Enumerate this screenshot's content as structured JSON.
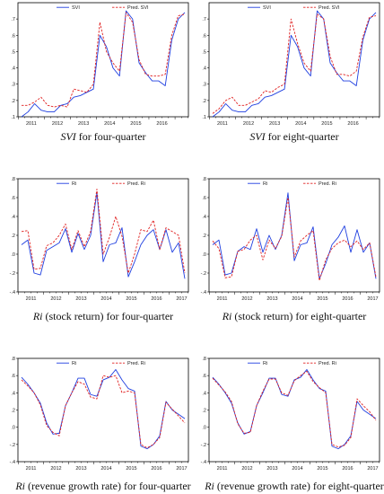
{
  "panels": [
    {
      "caption_italic": "SVI",
      "caption_rest": " for four-quarter",
      "chart_data": {
        "type": "line",
        "x_start_year": 2011,
        "x_tick_labels": [
          "2011",
          "2012",
          "2013",
          "2014",
          "2015",
          "2016",
          "2017"
        ],
        "ylim": [
          0.1,
          0.8
        ],
        "y_ticks": [
          0.1,
          0.2,
          0.3,
          0.4,
          0.5,
          0.6,
          0.7
        ],
        "y_tick_labels": [
          ".1",
          ".2",
          ".3",
          ".4",
          ".5",
          ".6",
          ".7"
        ],
        "legend_position": "top-center",
        "series": [
          {
            "name": "SVI",
            "color": "#1f3fe0",
            "dash": "solid",
            "values": [
              0.1,
              0.13,
              0.18,
              0.14,
              0.13,
              0.13,
              0.17,
              0.18,
              0.22,
              0.23,
              0.25,
              0.27,
              0.6,
              0.53,
              0.4,
              0.35,
              0.75,
              0.7,
              0.43,
              0.37,
              0.32,
              0.32,
              0.29,
              0.57,
              0.7,
              0.74
            ]
          },
          {
            "name": "Pred. SVI",
            "color": "#e02020",
            "dash": "dashed",
            "values": [
              0.17,
              0.17,
              0.19,
              0.22,
              0.17,
              0.16,
              0.17,
              0.16,
              0.27,
              0.26,
              0.25,
              0.3,
              0.68,
              0.5,
              0.43,
              0.38,
              0.74,
              0.68,
              0.45,
              0.36,
              0.35,
              0.35,
              0.36,
              0.6,
              0.72,
              0.73
            ]
          }
        ]
      }
    },
    {
      "caption_italic": "SVI",
      "caption_rest": " for eight-quarter",
      "chart_data": {
        "type": "line",
        "x_start_year": 2011,
        "x_tick_labels": [
          "2011",
          "2012",
          "2013",
          "2014",
          "2015",
          "2016",
          "2017"
        ],
        "ylim": [
          0.1,
          0.8
        ],
        "y_ticks": [
          0.1,
          0.2,
          0.3,
          0.4,
          0.5,
          0.6,
          0.7
        ],
        "y_tick_labels": [
          ".1",
          ".2",
          ".3",
          ".4",
          ".5",
          ".6",
          ".7"
        ],
        "legend_position": "top-center",
        "series": [
          {
            "name": "SVI",
            "color": "#1f3fe0",
            "dash": "solid",
            "values": [
              0.1,
              0.13,
              0.18,
              0.14,
              0.13,
              0.13,
              0.17,
              0.18,
              0.22,
              0.23,
              0.25,
              0.27,
              0.6,
              0.53,
              0.4,
              0.35,
              0.75,
              0.7,
              0.43,
              0.37,
              0.32,
              0.32,
              0.29,
              0.57,
              0.7,
              0.74
            ]
          },
          {
            "name": "Pred. SVI",
            "color": "#e02020",
            "dash": "dashed",
            "values": [
              0.12,
              0.15,
              0.2,
              0.22,
              0.17,
              0.17,
              0.19,
              0.21,
              0.26,
              0.25,
              0.28,
              0.3,
              0.7,
              0.55,
              0.43,
              0.38,
              0.73,
              0.7,
              0.47,
              0.36,
              0.36,
              0.35,
              0.38,
              0.59,
              0.71,
              0.72
            ]
          }
        ]
      }
    },
    {
      "caption_italic": "Ri",
      "caption_rest": " (stock return) for four-quarter",
      "chart_data": {
        "type": "line",
        "x_start_year": 2011,
        "x_tick_labels": [
          "2011",
          "2012",
          "2013",
          "2014",
          "2015",
          "2016",
          "2017"
        ],
        "ylim": [
          -0.4,
          0.8
        ],
        "y_ticks": [
          -0.4,
          -0.2,
          0.0,
          0.2,
          0.4,
          0.6,
          0.8
        ],
        "y_tick_labels": [
          "-.4",
          "-.2",
          ".0",
          ".2",
          ".4",
          ".6",
          ".8"
        ],
        "legend_position": "top-center",
        "series": [
          {
            "name": "Ri",
            "color": "#1f3fe0",
            "dash": "solid",
            "values": [
              0.1,
              0.15,
              -0.2,
              -0.22,
              0.04,
              0.08,
              0.12,
              0.27,
              0.02,
              0.22,
              0.05,
              0.2,
              0.65,
              -0.08,
              0.1,
              0.12,
              0.28,
              -0.24,
              -0.08,
              0.1,
              0.2,
              0.26,
              0.05,
              0.26,
              0.02,
              0.12,
              -0.26
            ]
          },
          {
            "name": "Pred. Ri",
            "color": "#e02020",
            "dash": "dashed",
            "values": [
              0.24,
              0.25,
              -0.16,
              -0.15,
              0.09,
              0.12,
              0.2,
              0.32,
              0.05,
              0.25,
              0.08,
              0.24,
              0.69,
              0.0,
              0.18,
              0.4,
              0.19,
              -0.2,
              0.0,
              0.26,
              0.24,
              0.36,
              0.05,
              0.28,
              0.24,
              0.2,
              -0.2
            ]
          }
        ]
      }
    },
    {
      "caption_italic": "Ri",
      "caption_rest": " (stock return) for eight-quarter",
      "chart_data": {
        "type": "line",
        "x_start_year": 2011,
        "x_tick_labels": [
          "2011",
          "2012",
          "2013",
          "2014",
          "2015",
          "2016",
          "2017"
        ],
        "ylim": [
          -0.4,
          0.8
        ],
        "y_ticks": [
          -0.4,
          -0.2,
          0.0,
          0.2,
          0.4,
          0.6,
          0.8
        ],
        "y_tick_labels": [
          "-.4",
          "-.2",
          ".0",
          ".2",
          ".4",
          ".6",
          ".8"
        ],
        "legend_position": "top-center",
        "series": [
          {
            "name": "Ri",
            "color": "#1f3fe0",
            "dash": "solid",
            "values": [
              0.1,
              0.15,
              -0.22,
              -0.2,
              0.03,
              0.08,
              0.05,
              0.27,
              0.02,
              0.2,
              0.05,
              0.2,
              0.65,
              -0.07,
              0.1,
              0.12,
              0.29,
              -0.26,
              -0.1,
              0.1,
              0.18,
              0.3,
              0.02,
              0.26,
              0.02,
              0.12,
              -0.26
            ]
          },
          {
            "name": "Pred. Ri",
            "color": "#e02020",
            "dash": "dashed",
            "values": [
              0.14,
              0.06,
              -0.25,
              -0.24,
              0.03,
              0.05,
              0.15,
              0.2,
              -0.06,
              0.15,
              0.06,
              0.19,
              0.6,
              -0.03,
              0.14,
              0.2,
              0.25,
              -0.28,
              -0.06,
              0.06,
              0.12,
              0.15,
              0.08,
              0.14,
              0.05,
              0.12,
              -0.24
            ]
          }
        ]
      }
    },
    {
      "caption_italic": "Ri",
      "caption_rest": " (revenue growth rate) for four-quarter",
      "chart_data": {
        "type": "line",
        "x_start_year": 2011,
        "x_tick_labels": [
          "2011",
          "2012",
          "2013",
          "2014",
          "2015",
          "2016",
          "2017"
        ],
        "ylim": [
          -0.4,
          0.8
        ],
        "y_ticks": [
          -0.4,
          -0.2,
          0.0,
          0.2,
          0.4,
          0.6,
          0.8
        ],
        "y_tick_labels": [
          "-.4",
          "-.2",
          ".0",
          ".2",
          ".4",
          ".6",
          ".8"
        ],
        "legend_position": "top-center",
        "series": [
          {
            "name": "Ri",
            "color": "#1f3fe0",
            "dash": "solid",
            "values": [
              0.58,
              0.5,
              0.4,
              0.28,
              0.05,
              -0.08,
              -0.07,
              0.25,
              0.4,
              0.57,
              0.57,
              0.38,
              0.36,
              0.55,
              0.58,
              0.67,
              0.55,
              0.45,
              0.42,
              -0.22,
              -0.25,
              -0.2,
              -0.1,
              0.3,
              0.2,
              0.15,
              0.1
            ]
          },
          {
            "name": "Pred. Ri",
            "color": "#e02020",
            "dash": "dashed",
            "values": [
              0.55,
              0.48,
              0.4,
              0.26,
              0.02,
              -0.06,
              -0.1,
              0.25,
              0.4,
              0.53,
              0.5,
              0.35,
              0.33,
              0.6,
              0.58,
              0.6,
              0.4,
              0.42,
              0.4,
              -0.2,
              -0.24,
              -0.2,
              -0.12,
              0.29,
              0.21,
              0.13,
              0.05
            ]
          }
        ]
      }
    },
    {
      "caption_italic": "Ri",
      "caption_rest": " (revenue growth rate) for eight-quarter",
      "chart_data": {
        "type": "line",
        "x_start_year": 2011,
        "x_tick_labels": [
          "2011",
          "2012",
          "2013",
          "2014",
          "2015",
          "2016",
          "2017"
        ],
        "ylim": [
          -0.4,
          0.8
        ],
        "y_ticks": [
          -0.4,
          -0.2,
          0.0,
          0.2,
          0.4,
          0.6,
          0.8
        ],
        "y_tick_labels": [
          "-.4",
          "-.2",
          ".0",
          ".2",
          ".4",
          ".6",
          ".8"
        ],
        "legend_position": "top-center",
        "series": [
          {
            "name": "Ri",
            "color": "#1f3fe0",
            "dash": "solid",
            "values": [
              0.58,
              0.5,
              0.4,
              0.28,
              0.05,
              -0.08,
              -0.05,
              0.25,
              0.4,
              0.57,
              0.57,
              0.38,
              0.36,
              0.55,
              0.58,
              0.67,
              0.55,
              0.45,
              0.42,
              -0.22,
              -0.25,
              -0.2,
              -0.1,
              0.3,
              0.2,
              0.15,
              0.1
            ]
          },
          {
            "name": "Pred. Ri",
            "color": "#e02020",
            "dash": "dashed",
            "values": [
              0.57,
              0.49,
              0.41,
              0.3,
              0.04,
              -0.07,
              -0.06,
              0.25,
              0.42,
              0.56,
              0.56,
              0.4,
              0.37,
              0.54,
              0.6,
              0.65,
              0.53,
              0.46,
              0.4,
              -0.2,
              -0.23,
              -0.21,
              -0.12,
              0.33,
              0.25,
              0.18,
              0.08
            ]
          }
        ]
      }
    }
  ]
}
